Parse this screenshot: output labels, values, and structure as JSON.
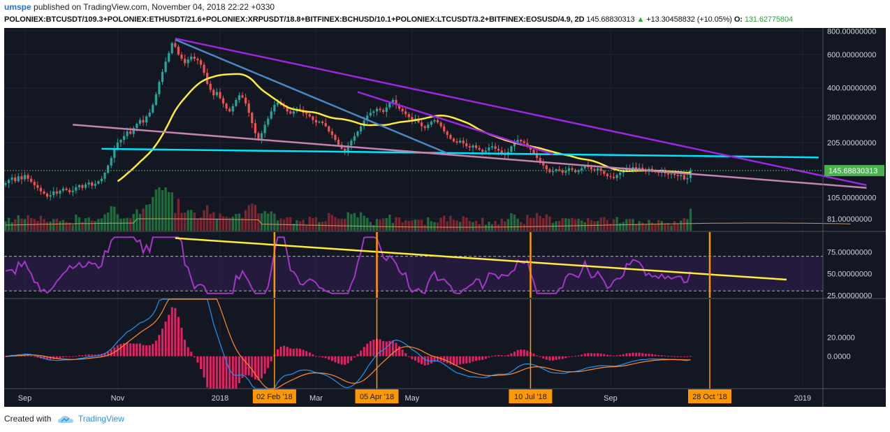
{
  "header": {
    "author": "umspe",
    "published_text": " published on TradingView.com, November 04, 2018 22:22 +0330",
    "symbol": "POLONIEX:BTCUSDT/109.3+POLONIEX:ETHUSDT/21.6+POLONIEX:XRPUSDT/18.8+BITFINEX:BCHUSD/10.1+POLONIEX:LTCUSDT/3.2+BITFINEX:EOSUSD/4.9, 2D",
    "last_price": "145.68830313",
    "change": "+13.30458832 (+10.05%)",
    "open_label": "O:",
    "open_value": "131.62775804"
  },
  "footer": {
    "created_with": "Created with",
    "brand": "TradingView"
  },
  "colors": {
    "up": "#26a69a",
    "down": "#ef5350",
    "bg": "#131722",
    "grid": "#1e2330",
    "sma": "#ffeb3b",
    "cyan": "#00e5ff",
    "pink": "#c484b0",
    "purple": "#9c27e0",
    "steel": "#4a88c8",
    "rsi": "#a436c8",
    "rsi_trend": "#ffeb3b",
    "marker": "#ff9800",
    "hist": "#e91e63",
    "macd": "#2196f3",
    "signal": "#ff8a2d"
  },
  "chart_data": {
    "type": "candlestick",
    "price_axis": {
      "scale": "log",
      "range": [
        70,
        830
      ],
      "ticks": [
        "800.00000000",
        "600.00000000",
        "400.00000000",
        "280.00000000",
        "205.00000000",
        "105.00000000",
        "81.00000000"
      ],
      "tick_values": [
        800,
        600,
        400,
        280,
        205,
        105,
        81
      ],
      "last_price_label": "145.68830313",
      "last_price": 145.68830313
    },
    "rsi": {
      "range": [
        22,
        98
      ],
      "ticks": [
        "75.00000000",
        "50.00000000",
        "25.00000000"
      ],
      "tick_values": [
        75,
        50,
        25
      ],
      "bands": [
        70,
        30
      ]
    },
    "macd": {
      "range": [
        -34,
        60
      ],
      "ticks": [
        "20.0000",
        "0.0000"
      ],
      "tick_values": [
        20,
        0
      ]
    },
    "x_axis": {
      "labels": [
        "Sep",
        "Nov",
        "2018",
        "Mar",
        "May",
        "Sep",
        "2019"
      ],
      "label_index": [
        6,
        35,
        67,
        97,
        127,
        189,
        249
      ]
    },
    "date_markers": [
      {
        "label": "02 Feb '18",
        "index": 84
      },
      {
        "label": "05 Apr '18",
        "index": 116
      },
      {
        "label": "10 Jul '18",
        "index": 164
      },
      {
        "label": "28 Oct '18",
        "index": 220
      }
    ],
    "closes": [
      125,
      130,
      134,
      128,
      136,
      131,
      138,
      132,
      127,
      122,
      118,
      113,
      110,
      106,
      108,
      113,
      110,
      114,
      117,
      115,
      112,
      114,
      119,
      122,
      118,
      123,
      126,
      121,
      124,
      128,
      132,
      142,
      155,
      170,
      190,
      205,
      212,
      222,
      235,
      228,
      245,
      258,
      270,
      262,
      282,
      296,
      325,
      370,
      430,
      485,
      550,
      610,
      690,
      660,
      600,
      570,
      540,
      565,
      585,
      570,
      560,
      530,
      480,
      420,
      390,
      365,
      380,
      352,
      330,
      310,
      300,
      320,
      345,
      365,
      355,
      330,
      295,
      260,
      230,
      215,
      230,
      255,
      275,
      300,
      325,
      335,
      325,
      318,
      300,
      292,
      300,
      310,
      305,
      295,
      290,
      282,
      270,
      262,
      265,
      260,
      250,
      235,
      225,
      212,
      200,
      190,
      185,
      198,
      210,
      222,
      235,
      250,
      268,
      285,
      295,
      300,
      310,
      305,
      298,
      315,
      335,
      345,
      325,
      310,
      300,
      290,
      280,
      270,
      275,
      262,
      250,
      245,
      255,
      265,
      270,
      262,
      250,
      235,
      225,
      215,
      208,
      205,
      210,
      203,
      196,
      193,
      198,
      192,
      188,
      183,
      186,
      193,
      196,
      190,
      186,
      180,
      176,
      183,
      196,
      205,
      212,
      208,
      204,
      195,
      188,
      180,
      170,
      162,
      155,
      148,
      143,
      145,
      148,
      146,
      142,
      145,
      150,
      147,
      143,
      146,
      150,
      155,
      152,
      148,
      146,
      150,
      145,
      140,
      136,
      135,
      133,
      138,
      142,
      145,
      150,
      148,
      152,
      149,
      151,
      147,
      145,
      149,
      146,
      143,
      142,
      145,
      141,
      139,
      140,
      138,
      136,
      138,
      131,
      133,
      146
    ],
    "sma50_start": 35,
    "trendlines": [
      {
        "name": "cyan",
        "from": [
          30,
          190
        ],
        "to": [
          254,
          171
        ]
      },
      {
        "name": "pink",
        "from": [
          21,
          255
        ],
        "to": [
          269,
          118
        ]
      },
      {
        "name": "purple-main",
        "from": [
          53,
          730
        ],
        "to": [
          269,
          122
        ]
      },
      {
        "name": "purple-second",
        "from": [
          110,
          380
        ],
        "to": [
          171,
          178
        ]
      },
      {
        "name": "steel",
        "from": [
          53,
          720
        ],
        "to": [
          138,
          180
        ]
      }
    ],
    "rsi_trendline": {
      "from": [
        53,
        91
      ],
      "to": [
        244,
        43
      ]
    }
  }
}
